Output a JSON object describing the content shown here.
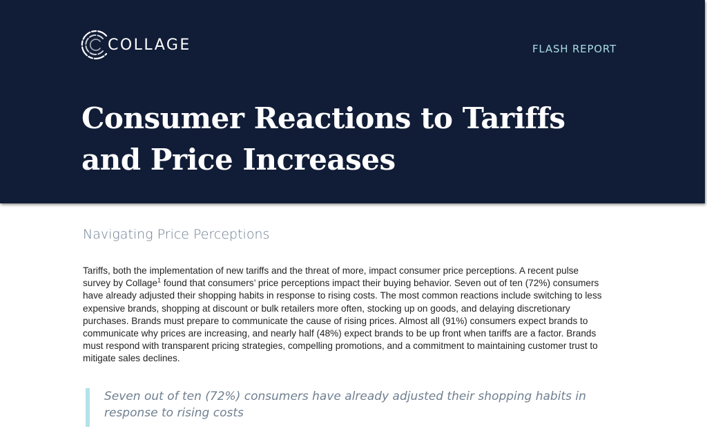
{
  "header": {
    "logo_text": "COLLAGE",
    "label": "FLASH REPORT",
    "title_lines": [
      "Consumer Reactions to Tariffs",
      "and Price Increases"
    ]
  },
  "section": {
    "heading": "Navigating Price Perceptions",
    "paragraph": {
      "line1": "Tariffs, both the implementation of new tariffs and the threat of more, impact consumer price perceptions. A recent pulse",
      "line2_a": "survey by Collage",
      "line2_sup": "1",
      "line2_b": " found that consumers’ price perceptions impact their buying behavior. Seven out of ten (72%) consumers",
      "line3": "have already adjusted their shopping habits in response to rising costs. The most common reactions include switching to less",
      "line4": "expensive brands, shopping at discount or bulk retailers more often, stocking up on goods, and delaying discretionary",
      "line5": "purchases. Brands must prepare to communicate the cause of rising prices. Almost all (91%) consumers expect brands to",
      "line6": "communicate why prices are increasing, and nearly half (48%) expect brands to be up front when tariffs are a factor. Brands",
      "line7": "must respond with transparent pricing strategies, compelling promotions, and a commitment to maintaining customer trust to",
      "line8": "mitigate sales declines."
    },
    "pull_quote": [
      "Seven out of ten (72%) consumers have already adjusted their shopping habits in",
      "response to rising costs"
    ]
  },
  "colors": {
    "header_bg": "#111d37",
    "accent": "#a9dce3",
    "quote_bar": "#b4e2e8"
  }
}
